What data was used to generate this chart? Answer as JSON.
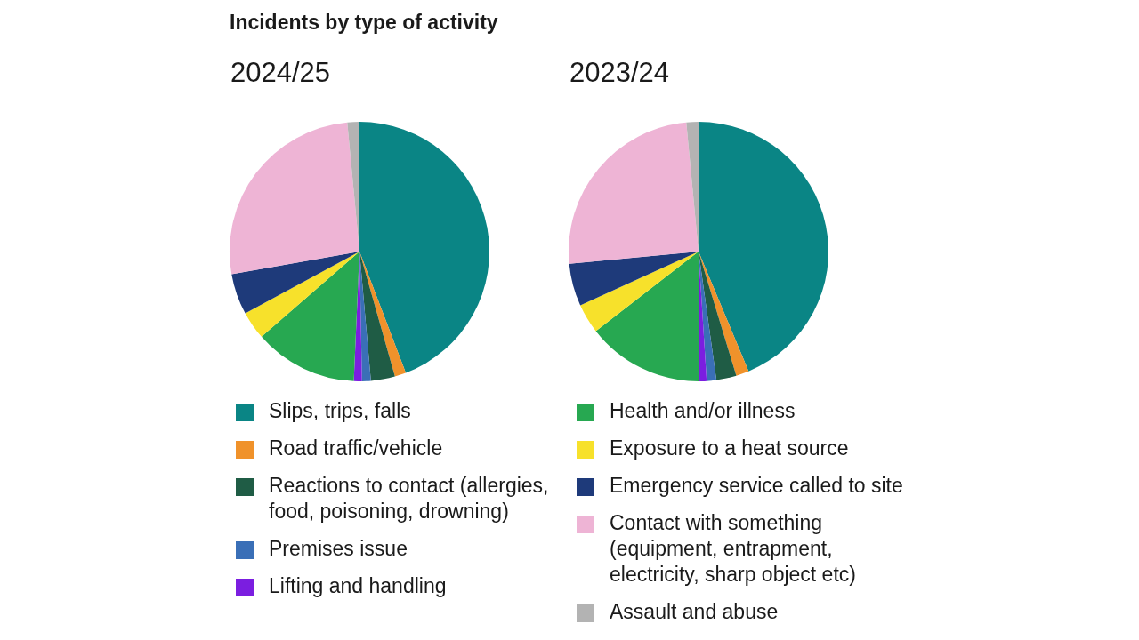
{
  "chart_data": {
    "type": "pie",
    "title": "Incidents by type of activity",
    "categories": [
      "Slips, trips, falls",
      "Road traffic/vehicle",
      "Reactions to contact (allergies, food, poisoning, drowning)",
      "Premises issue",
      "Lifting and handling",
      "Health and/or illness",
      "Exposure to a heat source",
      "Emergency service called to site",
      "Contact with something (equipment, entrapment, electricity, sharp object etc)",
      "Assault and abuse"
    ],
    "colors": [
      "#0a8585",
      "#f0922b",
      "#1f5c45",
      "#3a6fb7",
      "#7b1ee0",
      "#27a851",
      "#f7e12b",
      "#1e3a7a",
      "#eeb4d5",
      "#b3b3b3"
    ],
    "series": [
      {
        "name": "2024/25",
        "values": [
          44.2,
          1.4,
          3,
          1.1,
          1,
          12.9,
          3.5,
          5.1,
          26.3,
          1.5
        ]
      },
      {
        "name": "2023/24",
        "values": [
          43.7,
          1.6,
          2.5,
          1.2,
          1,
          14.5,
          3.7,
          5.3,
          25,
          1.5
        ]
      }
    ],
    "legend": "bottom"
  }
}
